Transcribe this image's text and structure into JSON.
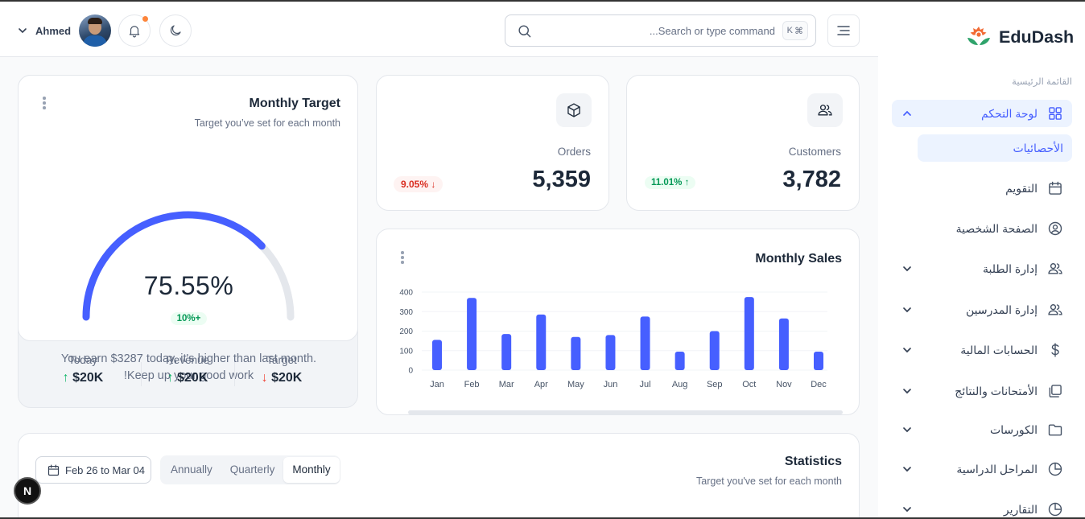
{
  "header": {
    "user_name": "Ahmed",
    "search_placeholder": "...Search or type command",
    "search_shortcut": "K",
    "search_shortcut_symbol": "⌘"
  },
  "target_card": {
    "title": "Monthly Target",
    "subtitle": "Target you’ve set for each month",
    "percent": "75.55%",
    "percent_value": 75.55,
    "badge": "10%+",
    "message_line1": "You earn $3287 today, it's higher than last month.",
    "message_line2": "!Keep up your good work",
    "stats": [
      {
        "label": "Today",
        "value": "$20K",
        "trend": "up"
      },
      {
        "label": "Revenue",
        "value": "$20K",
        "trend": "up"
      },
      {
        "label": "Target",
        "value": "$20K",
        "trend": "down"
      }
    ],
    "colors": {
      "accent": "#465fff",
      "track": "#e4e7ec"
    }
  },
  "metrics": {
    "orders": {
      "label": "Orders",
      "value": "5,359",
      "change": "9.05%",
      "trend": "down"
    },
    "customers": {
      "label": "Customers",
      "value": "3,782",
      "change": "11.01%",
      "trend": "up"
    }
  },
  "sales_card": {
    "title": "Monthly Sales"
  },
  "chart_data": {
    "type": "bar",
    "title": "Monthly Sales",
    "categories": [
      "Jan",
      "Feb",
      "Mar",
      "Apr",
      "May",
      "Jun",
      "Jul",
      "Aug",
      "Sep",
      "Oct",
      "Nov",
      "Dec"
    ],
    "values": [
      155,
      370,
      185,
      285,
      170,
      180,
      275,
      95,
      200,
      375,
      265,
      95
    ],
    "yticks": [
      0,
      100,
      200,
      300,
      400
    ],
    "ylim": [
      0,
      400
    ],
    "grid": true,
    "color": "#465fff"
  },
  "statistics": {
    "title": "Statistics",
    "subtitle": "Target you've set for each month",
    "date_range": "Feb 26 to Mar 04",
    "tabs": [
      "Annually",
      "Quarterly",
      "Monthly"
    ],
    "active_tab": "Monthly"
  },
  "sidebar": {
    "brand": "EduDash",
    "section_title": "القائمة الرئيسية",
    "items": [
      {
        "label": "لوحة التحكم",
        "icon": "grid-icon",
        "active": true
      },
      {
        "label": "التقويم",
        "icon": "calendar-icon"
      },
      {
        "label": "الصفحة الشخصية",
        "icon": "user-circle-icon"
      },
      {
        "label": "إدارة الطلبة",
        "icon": "users-icon"
      },
      {
        "label": "إدارة المدرسين",
        "icon": "users-icon"
      },
      {
        "label": "الحسابات المالية",
        "icon": "dollar-icon"
      },
      {
        "label": "الأمتحانات والنتائج",
        "icon": "copy-icon"
      },
      {
        "label": "الكورسات",
        "icon": "folder-icon"
      },
      {
        "label": "المراحل الدراسية",
        "icon": "pie-icon"
      },
      {
        "label": "التقارير",
        "icon": "pie-icon"
      }
    ],
    "subitem": "الأحصائيات"
  },
  "floating": {
    "n_button": "N"
  }
}
